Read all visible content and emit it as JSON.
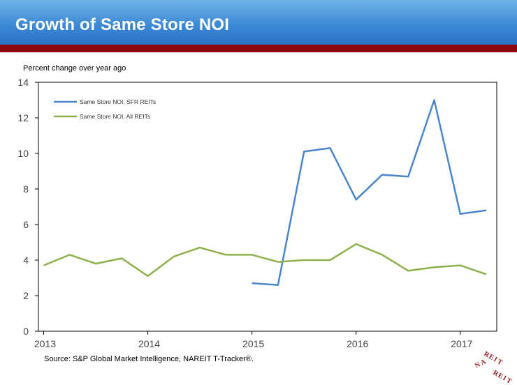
{
  "header": {
    "title": "Growth of Same Store NOI"
  },
  "source": "Source: S&P Global Market Intelligence, NAREIT T-Tracker®.",
  "logo_text": "NAREIT",
  "colors": {
    "banner": "#3d8ad6",
    "rule": "#8c0a10",
    "sfr": "#4a86cf",
    "all": "#8db04a"
  },
  "chart_data": {
    "type": "line",
    "title": "",
    "ylabel": "Percent change over year ago",
    "xlabel": "",
    "ylim": [
      0,
      14
    ],
    "yticks": [
      0,
      2,
      4,
      6,
      8,
      10,
      12,
      14
    ],
    "xlim": [
      2012.95,
      2017.35
    ],
    "xticks": [
      2013,
      2014,
      2015,
      2016,
      2017
    ],
    "xtick_labels": [
      "2013",
      "2014",
      "2015",
      "2016",
      "2017"
    ],
    "grid": false,
    "legend": "top-left",
    "series": [
      {
        "name": "Same Store NOI, SFR REITs",
        "x": [
          2015.0,
          2015.25,
          2015.5,
          2015.75,
          2016.0,
          2016.25,
          2016.5,
          2016.75,
          2017.0,
          2017.25
        ],
        "y": [
          2.7,
          2.6,
          10.1,
          10.3,
          7.4,
          8.8,
          8.7,
          13.0,
          6.6,
          6.8
        ]
      },
      {
        "name": "Same Store NOI, All REITs",
        "x": [
          2013.0,
          2013.25,
          2013.5,
          2013.75,
          2014.0,
          2014.25,
          2014.5,
          2014.75,
          2015.0,
          2015.25,
          2015.5,
          2015.75,
          2016.0,
          2016.25,
          2016.5,
          2016.75,
          2017.0,
          2017.25
        ],
        "y": [
          3.7,
          4.3,
          3.8,
          4.1,
          3.1,
          4.2,
          4.7,
          4.3,
          4.3,
          3.9,
          4.0,
          4.0,
          4.9,
          4.3,
          3.4,
          3.6,
          3.7,
          3.2
        ]
      }
    ]
  }
}
